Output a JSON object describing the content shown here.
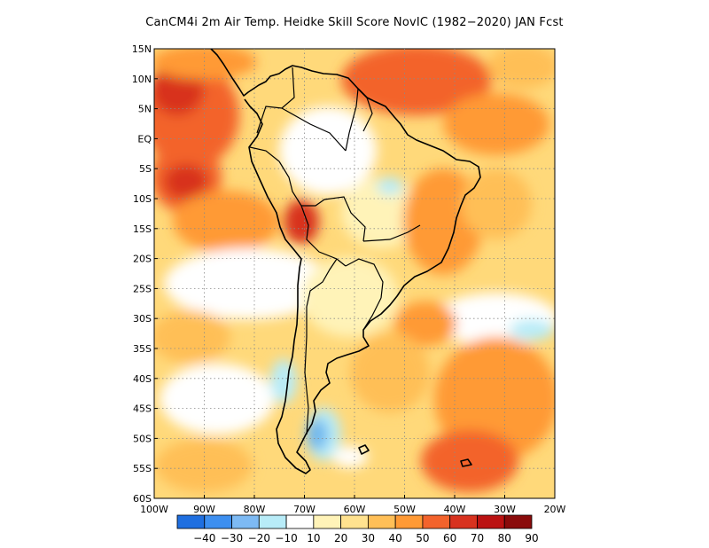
{
  "title": "CanCM4i  2m Air Temp. Heidke Skill Score NovIC (1982−2020) JAN Fcst",
  "map": {
    "lon_range": [
      -100,
      -20
    ],
    "lat_range": [
      -60,
      15
    ],
    "lat_labels": [
      "15N",
      "10N",
      "5N",
      "EQ",
      "5S",
      "10S",
      "15S",
      "20S",
      "25S",
      "30S",
      "35S",
      "40S",
      "45S",
      "50S",
      "55S",
      "60S"
    ],
    "lon_labels": [
      "100W",
      "90W",
      "80W",
      "70W",
      "60W",
      "50W",
      "40W",
      "30W",
      "20W"
    ],
    "grid": true,
    "field_colors": {
      "ocean_base": "#ffd97a",
      "very_light": "#fff3b8",
      "light": "#ffe28f",
      "medium": "#ffbf57",
      "orange": "#ff9a35",
      "dark_orange": "#f3632c",
      "red": "#d8321f",
      "white": "#ffffff",
      "cyan": "#b8ecf8",
      "blue": "#6fb7ee",
      "land_line": "#000000"
    }
  },
  "colorbar": {
    "labels": [
      "−40",
      "−30",
      "−20",
      "−10",
      "10",
      "20",
      "30",
      "40",
      "50",
      "60",
      "70",
      "80",
      "90"
    ],
    "colors": [
      "#1f6fe0",
      "#3d8ff0",
      "#7dbaf4",
      "#b8ecf8",
      "#ffffff",
      "#fff3b8",
      "#ffe28f",
      "#ffbf57",
      "#ff9a35",
      "#f3632c",
      "#d8321f",
      "#bb1212",
      "#8a0b0b"
    ]
  }
}
